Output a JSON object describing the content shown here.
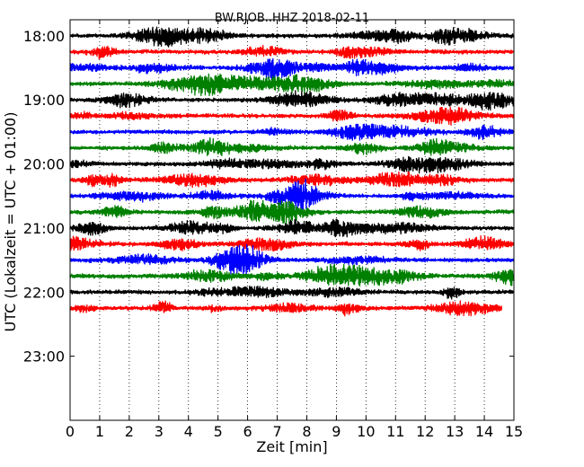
{
  "chart_data": {
    "type": "line",
    "title": "BW.RJOB..HHZ 2018-02-11",
    "xlabel": "Zeit  [min]",
    "ylabel": "UTC (Lokalzeit = UTC + 01:00)",
    "xlim": [
      0,
      15
    ],
    "xticks": [
      0,
      1,
      2,
      3,
      4,
      5,
      6,
      7,
      8,
      9,
      10,
      11,
      12,
      13,
      14,
      15
    ],
    "ylim_time": [
      "17:45",
      "24:00"
    ],
    "yticks": [
      "18:00",
      "19:00",
      "20:00",
      "21:00",
      "22:00",
      "23:00"
    ],
    "grid": "vertical dotted at each minute",
    "trace_interval_minutes": 15,
    "trace_colors": [
      "#000000",
      "#ff0000",
      "#0000ff",
      "#008000"
    ],
    "traces": [
      {
        "start": "18:00",
        "end_min": 15
      },
      {
        "start": "18:15",
        "end_min": 15
      },
      {
        "start": "18:30",
        "end_min": 15
      },
      {
        "start": "18:45",
        "end_min": 15
      },
      {
        "start": "19:00",
        "end_min": 15
      },
      {
        "start": "19:15",
        "end_min": 15
      },
      {
        "start": "19:30",
        "end_min": 15
      },
      {
        "start": "19:45",
        "end_min": 15
      },
      {
        "start": "20:00",
        "end_min": 15
      },
      {
        "start": "20:15",
        "end_min": 15
      },
      {
        "start": "20:30",
        "end_min": 15
      },
      {
        "start": "20:45",
        "end_min": 15
      },
      {
        "start": "21:00",
        "end_min": 15
      },
      {
        "start": "21:15",
        "end_min": 15
      },
      {
        "start": "21:30",
        "end_min": 15
      },
      {
        "start": "21:45",
        "end_min": 15
      },
      {
        "start": "22:00",
        "end_min": 15
      },
      {
        "start": "22:15",
        "end_min": 14.6
      }
    ]
  }
}
